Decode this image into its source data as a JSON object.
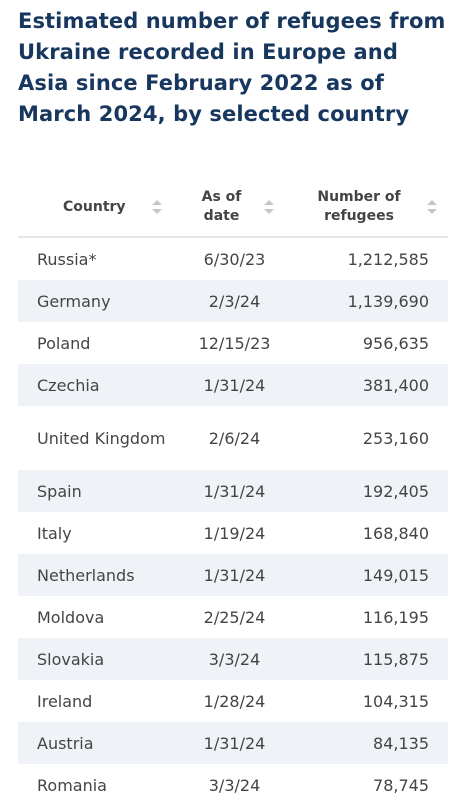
{
  "title": "Estimated number of refugees from Ukraine recorded in Europe and Asia since February 2022 as of March 2024, by selected country",
  "table": {
    "headers": {
      "country": "Country",
      "date": "As of date",
      "refugees": "Number of refugees"
    },
    "sort_icon": "sort-icon"
  },
  "chart_data": {
    "type": "table",
    "title": "Estimated number of refugees from Ukraine recorded in Europe and Asia since February 2022 as of March 2024, by selected country",
    "columns": [
      "Country",
      "As of date",
      "Number of refugees"
    ],
    "rows": [
      {
        "country": "Russia*",
        "date": "6/30/23",
        "refugees": "1,212,585"
      },
      {
        "country": "Germany",
        "date": "2/3/24",
        "refugees": "1,139,690"
      },
      {
        "country": "Poland",
        "date": "12/15/23",
        "refugees": "956,635"
      },
      {
        "country": "Czechia",
        "date": "1/31/24",
        "refugees": "381,400"
      },
      {
        "country": "United Kingdom",
        "date": "2/6/24",
        "refugees": "253,160"
      },
      {
        "country": "Spain",
        "date": "1/31/24",
        "refugees": "192,405"
      },
      {
        "country": "Italy",
        "date": "1/19/24",
        "refugees": "168,840"
      },
      {
        "country": "Netherlands",
        "date": "1/31/24",
        "refugees": "149,015"
      },
      {
        "country": "Moldova",
        "date": "2/25/24",
        "refugees": "116,195"
      },
      {
        "country": "Slovakia",
        "date": "3/3/24",
        "refugees": "115,875"
      },
      {
        "country": "Ireland",
        "date": "1/28/24",
        "refugees": "104,315"
      },
      {
        "country": "Austria",
        "date": "1/31/24",
        "refugees": "84,135"
      },
      {
        "country": "Romania",
        "date": "3/3/24",
        "refugees": "78,745"
      }
    ]
  }
}
